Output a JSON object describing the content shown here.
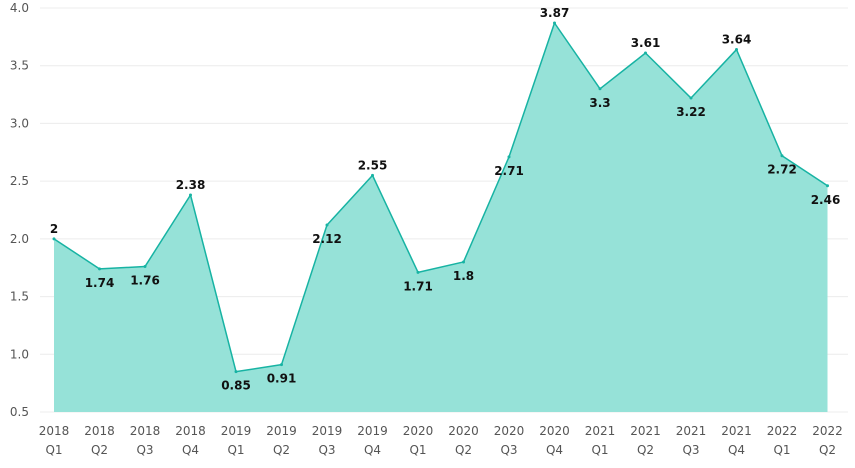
{
  "chart_data": {
    "type": "area",
    "title": "",
    "xlabel": "",
    "ylabel": "",
    "ylim": [
      0.5,
      4.0
    ],
    "yticks": [
      "0.5",
      "1.0",
      "1.5",
      "2.0",
      "2.5",
      "3.0",
      "3.5",
      "4.0"
    ],
    "grid": true,
    "categories": [
      [
        "2018",
        "Q1"
      ],
      [
        "2018",
        "Q2"
      ],
      [
        "2018",
        "Q3"
      ],
      [
        "2018",
        "Q4"
      ],
      [
        "2019",
        "Q1"
      ],
      [
        "2019",
        "Q2"
      ],
      [
        "2019",
        "Q3"
      ],
      [
        "2019",
        "Q4"
      ],
      [
        "2020",
        "Q1"
      ],
      [
        "2020",
        "Q2"
      ],
      [
        "2020",
        "Q3"
      ],
      [
        "2020",
        "Q4"
      ],
      [
        "2021",
        "Q1"
      ],
      [
        "2021",
        "Q2"
      ],
      [
        "2021",
        "Q3"
      ],
      [
        "2021",
        "Q4"
      ],
      [
        "2022",
        "Q1"
      ],
      [
        "2022",
        "Q2"
      ]
    ],
    "series": [
      {
        "values": [
          2,
          1.74,
          1.76,
          2.38,
          0.85,
          0.91,
          2.12,
          2.55,
          1.71,
          1.8,
          2.71,
          3.87,
          3.3,
          3.61,
          3.22,
          3.64,
          2.72,
          2.46
        ],
        "labels": [
          "2",
          "1.74",
          "1.76",
          "2.38",
          "0.85",
          "0.91",
          "2.12",
          "2.55",
          "1.71",
          "1.8",
          "2.71",
          "3.87",
          "3.3",
          "3.61",
          "3.22",
          "3.64",
          "2.72",
          "2.46"
        ],
        "line_color": "#17b3a3",
        "fill_color": "#96e2d8"
      }
    ]
  }
}
